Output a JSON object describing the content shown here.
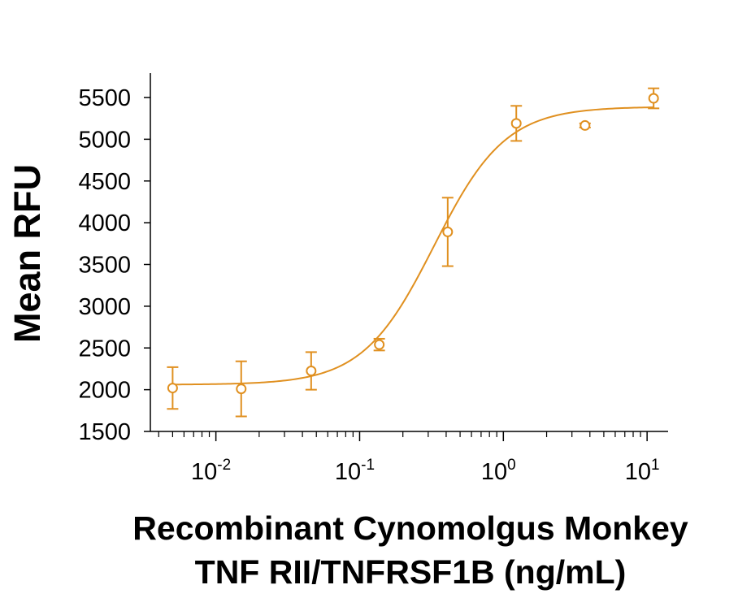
{
  "chart_data": {
    "type": "scatter",
    "title": "",
    "xlabel_lines": [
      "Recombinant Cynomolgus Monkey",
      "TNF RII/TNFRSF1B (ng/mL)"
    ],
    "ylabel": "Mean RFU",
    "x_scale": "log",
    "xlim": [
      0.0035,
      14
    ],
    "ylim": [
      1500,
      5500
    ],
    "y_ticks": [
      1500,
      2000,
      2500,
      3000,
      3500,
      4000,
      4500,
      5000,
      5500
    ],
    "y_tick_labels": [
      "1500",
      "2000",
      "2500",
      "3000",
      "3500",
      "4000",
      "4500",
      "5000",
      "5500"
    ],
    "x_ticks": [
      {
        "base": "10",
        "exp": "-2",
        "value": 0.01
      },
      {
        "base": "10",
        "exp": "-1",
        "value": 0.1
      },
      {
        "base": "10",
        "exp": "0",
        "value": 1
      },
      {
        "base": "10",
        "exp": "1",
        "value": 10
      }
    ],
    "grid": false,
    "series": [
      {
        "points": [
          {
            "x": 0.005,
            "y": 2020,
            "err": 250
          },
          {
            "x": 0.015,
            "y": 2010,
            "err": 330
          },
          {
            "x": 0.046,
            "y": 2225,
            "err": 225
          },
          {
            "x": 0.137,
            "y": 2540,
            "err": 70
          },
          {
            "x": 0.41,
            "y": 3890,
            "err": 410
          },
          {
            "x": 1.23,
            "y": 5190,
            "err": 210
          },
          {
            "x": 3.7,
            "y": 5165,
            "err": 25
          },
          {
            "x": 11.1,
            "y": 5490,
            "err": 120
          }
        ],
        "fit": {
          "model": "4PL",
          "bottom": 2060,
          "top": 5390,
          "ec50": 0.33,
          "hill": 1.75
        }
      }
    ],
    "colors": {
      "series": "#E09020",
      "axis": "#000000"
    }
  }
}
